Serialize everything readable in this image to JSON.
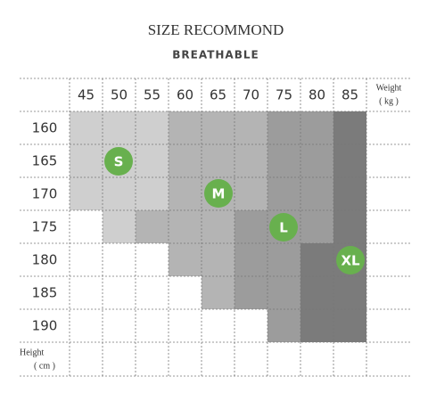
{
  "header": {
    "title": "SIZE RECOMMOND",
    "subtitle": "BREATHABLE"
  },
  "table": {
    "weight_label": "Weight",
    "weight_unit": "( kg )",
    "weights": [
      45,
      50,
      55,
      60,
      65,
      70,
      75,
      80,
      85
    ],
    "height_label": "Height",
    "height_unit": "( cm )",
    "heights": [
      160,
      165,
      170,
      175,
      180,
      185,
      190
    ]
  },
  "sizes": [
    "S",
    "M",
    "L",
    "XL"
  ]
}
